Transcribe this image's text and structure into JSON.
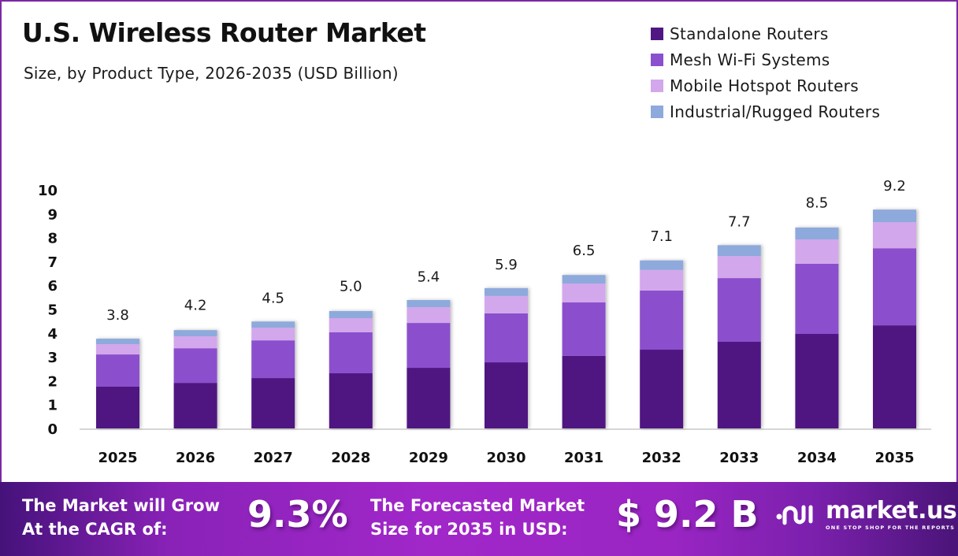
{
  "header": {
    "title": "U.S. Wireless Router Market",
    "subtitle": "Size, by Product Type, 2026-2035 (USD Billion)"
  },
  "colors": {
    "frame_border": "#7a2aa6",
    "standalone": "#4f1782",
    "mesh": "#8b50cd",
    "hotspot": "#d3a7ec",
    "industrial": "#8eaadc"
  },
  "chart_data": {
    "type": "bar",
    "stacked": true,
    "title": "U.S. Wireless Router Market",
    "subtitle": "Size, by Product Type, 2026-2035 (USD Billion)",
    "xlabel": "",
    "ylabel": "",
    "ylim": [
      0,
      10
    ],
    "yticks": [
      "0",
      "1",
      "2",
      "3",
      "4",
      "5",
      "6",
      "7",
      "8",
      "9",
      "10"
    ],
    "grid": false,
    "legend_position": "top-right",
    "categories": [
      "2025",
      "2026",
      "2027",
      "2028",
      "2029",
      "2030",
      "2031",
      "2032",
      "2033",
      "2034",
      "2035"
    ],
    "series": [
      {
        "name": "Standalone Routers",
        "color": "#4f1782",
        "values": [
          1.75,
          1.91,
          2.11,
          2.31,
          2.54,
          2.77,
          3.04,
          3.3,
          3.63,
          3.96,
          4.32
        ]
      },
      {
        "name": "Mesh Wi-Fi Systems",
        "color": "#8b50cd",
        "values": [
          1.35,
          1.45,
          1.58,
          1.72,
          1.88,
          2.05,
          2.24,
          2.48,
          2.67,
          2.94,
          3.23
        ]
      },
      {
        "name": "Mobile Hotspot Routers",
        "color": "#d3a7ec",
        "values": [
          0.43,
          0.5,
          0.53,
          0.59,
          0.66,
          0.73,
          0.79,
          0.86,
          0.92,
          1.02,
          1.09
        ]
      },
      {
        "name": "Industrial/Rugged Routers",
        "color": "#8eaadc",
        "values": [
          0.23,
          0.26,
          0.26,
          0.3,
          0.3,
          0.33,
          0.36,
          0.4,
          0.46,
          0.5,
          0.53
        ]
      }
    ],
    "totals": [
      3.8,
      4.2,
      4.5,
      5.0,
      5.4,
      5.9,
      6.5,
      7.1,
      7.7,
      8.5,
      9.2
    ],
    "total_labels": [
      "3.8",
      "4.2",
      "4.5",
      "5.0",
      "5.4",
      "5.9",
      "6.5",
      "7.1",
      "7.7",
      "8.5",
      "9.2"
    ]
  },
  "banner": {
    "cagr_text_line1": "The Market will Grow",
    "cagr_text_line2": "At the CAGR of:",
    "cagr_value": "9.3%",
    "forecast_text_line1": "The Forecasted Market",
    "forecast_text_line2": "Size for 2035 in USD:",
    "forecast_value": "$ 9.2 B",
    "logo_name": "market.us",
    "logo_tagline": "ONE STOP SHOP FOR THE REPORTS",
    "logo_icon": "market-us-logo-icon"
  }
}
